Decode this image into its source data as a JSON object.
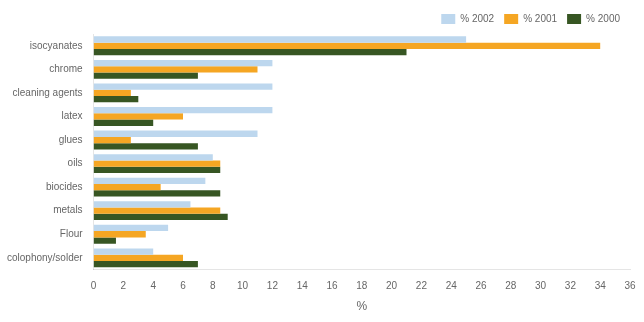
{
  "chart_data": {
    "type": "bar",
    "orientation": "horizontal",
    "categories": [
      "isocyanates",
      "chrome",
      "cleaning agents",
      "latex",
      "glues",
      "oils",
      "biocides",
      "metals",
      "Flour",
      "colophony/solder"
    ],
    "series": [
      {
        "name": "% 2002",
        "color": "#BDD7EE",
        "values": [
          25,
          12,
          12,
          12,
          11,
          8,
          7.5,
          6.5,
          5,
          4
        ]
      },
      {
        "name": "% 2001",
        "color": "#F5A623",
        "values": [
          34,
          11,
          2.5,
          6,
          2.5,
          8.5,
          4.5,
          8.5,
          3.5,
          6
        ]
      },
      {
        "name": "% 2000",
        "color": "#375623",
        "values": [
          21,
          7,
          3,
          4,
          7,
          8.5,
          8.5,
          9,
          1.5,
          7
        ]
      }
    ],
    "xlabel": "%",
    "xlim": [
      0,
      36
    ],
    "xticks": [
      0,
      2,
      4,
      6,
      8,
      10,
      12,
      14,
      16,
      18,
      20,
      22,
      24,
      26,
      28,
      30,
      32,
      34,
      36
    ],
    "grid": false,
    "legend": "upper right"
  }
}
